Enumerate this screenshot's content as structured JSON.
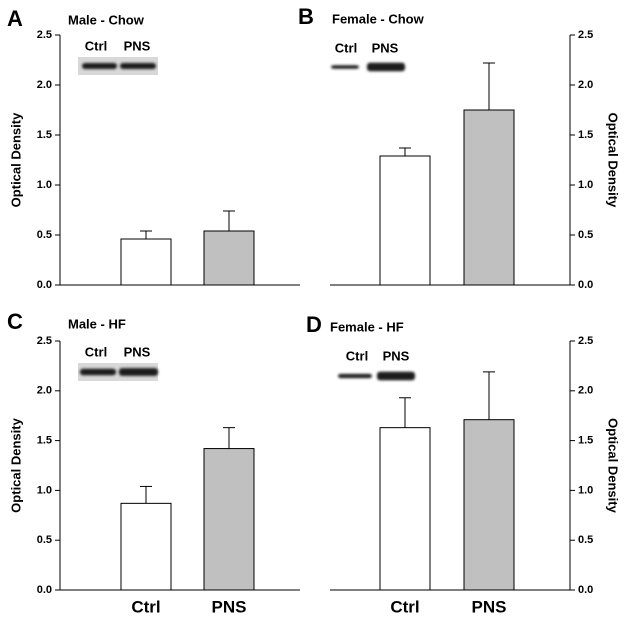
{
  "chart_data": [
    {
      "type": "bar",
      "panel": "A",
      "title": "Male - Chow",
      "ylabel": "Optical Density",
      "y_axis_side": "left",
      "blot_labels": [
        "Ctrl",
        "PNS"
      ],
      "categories": [
        null,
        null
      ],
      "values": [
        0.46,
        0.54
      ],
      "errors": [
        0.08,
        0.2
      ],
      "colors": [
        "#ffffff",
        "#c0c0c0"
      ],
      "ylim": [
        0,
        2.5
      ],
      "yticks": [
        {
          "value": 0,
          "label": "0.0"
        },
        {
          "value": 0.5,
          "label": "0.5"
        },
        {
          "value": 1,
          "label": "1.0"
        },
        {
          "value": 1.5,
          "label": "1.5"
        },
        {
          "value": 2,
          "label": "2.0"
        },
        {
          "value": 2.5,
          "label": "2.5"
        }
      ]
    },
    {
      "type": "bar",
      "panel": "B",
      "title": "Female - Chow",
      "ylabel": "Optical Density",
      "y_axis_side": "right",
      "blot_labels": [
        "Ctrl",
        "PNS"
      ],
      "categories": [
        null,
        null
      ],
      "values": [
        1.29,
        1.75
      ],
      "errors": [
        0.08,
        0.47
      ],
      "colors": [
        "#ffffff",
        "#c0c0c0"
      ],
      "ylim": [
        0,
        2.5
      ],
      "yticks": [
        {
          "value": 0,
          "label": "0.0"
        },
        {
          "value": 0.5,
          "label": "0.5"
        },
        {
          "value": 1,
          "label": "1.0"
        },
        {
          "value": 1.5,
          "label": "1.5"
        },
        {
          "value": 2,
          "label": "2.0"
        },
        {
          "value": 2.5,
          "label": "2.5"
        }
      ]
    },
    {
      "type": "bar",
      "panel": "C",
      "title": "Male - HF",
      "ylabel": "Optical Density",
      "y_axis_side": "left",
      "blot_labels": [
        "Ctrl",
        "PNS"
      ],
      "categories": [
        "Ctrl",
        "PNS"
      ],
      "values": [
        0.87,
        1.42
      ],
      "errors": [
        0.17,
        0.21
      ],
      "colors": [
        "#ffffff",
        "#c0c0c0"
      ],
      "ylim": [
        0,
        2.5
      ],
      "yticks": [
        {
          "value": 0,
          "label": "0.0"
        },
        {
          "value": 0.5,
          "label": "0.5"
        },
        {
          "value": 1,
          "label": "1.0"
        },
        {
          "value": 1.5,
          "label": "1.5"
        },
        {
          "value": 2,
          "label": "2.0"
        },
        {
          "value": 2.5,
          "label": "2.5"
        }
      ]
    },
    {
      "type": "bar",
      "panel": "D",
      "title": "Female - HF",
      "ylabel": "Optical Density",
      "y_axis_side": "right",
      "blot_labels": [
        "Ctrl",
        "PNS"
      ],
      "categories": [
        "Ctrl",
        "PNS"
      ],
      "values": [
        1.63,
        1.71
      ],
      "errors": [
        0.3,
        0.48
      ],
      "colors": [
        "#ffffff",
        "#c0c0c0"
      ],
      "ylim": [
        0,
        2.5
      ],
      "yticks": [
        {
          "value": 0,
          "label": "0.0"
        },
        {
          "value": 0.5,
          "label": "0.5"
        },
        {
          "value": 1,
          "label": "1.0"
        },
        {
          "value": 1.5,
          "label": "1.5"
        },
        {
          "value": 2,
          "label": "2.0"
        },
        {
          "value": 2.5,
          "label": "2.5"
        }
      ]
    }
  ]
}
